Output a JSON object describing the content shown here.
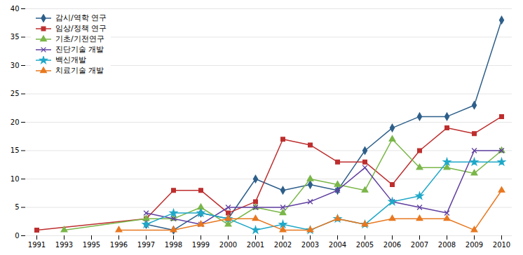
{
  "chart_data": {
    "type": "line",
    "categories": [
      "1991",
      "1993",
      "1995",
      "1996",
      "1997",
      "1998",
      "1999",
      "2000",
      "2001",
      "2002",
      "2003",
      "2004",
      "2005",
      "2006",
      "2007",
      "2008",
      "2009",
      "2010"
    ],
    "series": [
      {
        "name": "감시/역학 연구",
        "color": "#2e5f8a",
        "marker": "diamond",
        "values": [
          null,
          null,
          null,
          null,
          2,
          1,
          4,
          3,
          10,
          8,
          9,
          8,
          15,
          19,
          21,
          21,
          23,
          38
        ]
      },
      {
        "name": "임상/정책 연구",
        "color": "#be2e2e",
        "marker": "square",
        "values": [
          1,
          null,
          null,
          null,
          3,
          8,
          8,
          4,
          6,
          17,
          16,
          13,
          13,
          9,
          15,
          19,
          18,
          21
        ]
      },
      {
        "name": "기초/기전연구",
        "color": "#7ab648",
        "marker": "triangle",
        "values": [
          null,
          1,
          null,
          null,
          3,
          3,
          5,
          2,
          5,
          4,
          10,
          9,
          8,
          17,
          12,
          12,
          11,
          15
        ]
      },
      {
        "name": "진단기술 개발",
        "color": "#6040a0",
        "marker": "x",
        "values": [
          null,
          null,
          null,
          null,
          4,
          3,
          2,
          5,
          5,
          5,
          6,
          8,
          12,
          6,
          5,
          4,
          15,
          15
        ]
      },
      {
        "name": "백신개발",
        "color": "#20a8c8",
        "marker": "star",
        "values": [
          null,
          null,
          null,
          null,
          2,
          4,
          4,
          3,
          1,
          2,
          1,
          3,
          2,
          6,
          7,
          13,
          13,
          13
        ]
      },
      {
        "name": "치료기술 개발",
        "color": "#e87820",
        "marker": "triangle",
        "values": [
          null,
          null,
          null,
          1,
          null,
          1,
          2,
          3,
          3,
          1,
          1,
          3,
          2,
          3,
          3,
          3,
          1,
          8
        ]
      }
    ],
    "ylim": [
      0,
      40
    ],
    "yticks": [
      0,
      5,
      10,
      15,
      20,
      25,
      30,
      35,
      40
    ],
    "grid": true,
    "legend": "upper left"
  }
}
